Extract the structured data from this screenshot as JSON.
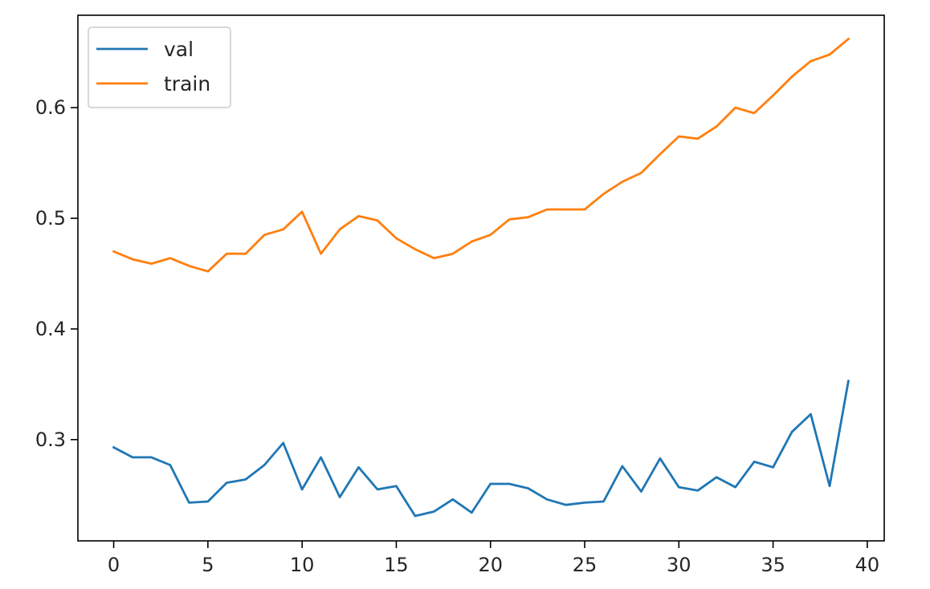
{
  "chart_data": {
    "type": "line",
    "title": "",
    "xlabel": "",
    "ylabel": "",
    "x": [
      0,
      1,
      2,
      3,
      4,
      5,
      6,
      7,
      8,
      9,
      10,
      11,
      12,
      13,
      14,
      15,
      16,
      17,
      18,
      19,
      20,
      21,
      22,
      23,
      24,
      25,
      26,
      27,
      28,
      29,
      30,
      31,
      32,
      33,
      34,
      35,
      36,
      37,
      38,
      39
    ],
    "xlim": [
      -1.9,
      40.9
    ],
    "ylim": [
      0.2085,
      0.6835
    ],
    "xticks": [
      0,
      5,
      10,
      15,
      20,
      25,
      30,
      35,
      40
    ],
    "xtick_labels": [
      "0",
      "5",
      "10",
      "15",
      "20",
      "25",
      "30",
      "35",
      "40"
    ],
    "yticks": [
      0.3,
      0.4,
      0.5,
      0.6
    ],
    "ytick_labels": [
      "0.3",
      "0.4",
      "0.5",
      "0.6"
    ],
    "grid": false,
    "legend_position": "upper-left",
    "series": [
      {
        "name": "val",
        "color": "#1f77b4",
        "values": [
          0.293,
          0.284,
          0.284,
          0.277,
          0.243,
          0.244,
          0.261,
          0.264,
          0.277,
          0.297,
          0.255,
          0.284,
          0.248,
          0.275,
          0.255,
          0.258,
          0.231,
          0.235,
          0.246,
          0.234,
          0.26,
          0.26,
          0.256,
          0.246,
          0.241,
          0.243,
          0.244,
          0.276,
          0.253,
          0.283,
          0.257,
          0.254,
          0.266,
          0.257,
          0.28,
          0.275,
          0.307,
          0.323,
          0.258,
          0.353
        ]
      },
      {
        "name": "train",
        "color": "#ff7f0e",
        "values": [
          0.47,
          0.463,
          0.459,
          0.464,
          0.457,
          0.452,
          0.468,
          0.468,
          0.485,
          0.49,
          0.506,
          0.468,
          0.49,
          0.502,
          0.498,
          0.482,
          0.472,
          0.464,
          0.468,
          0.479,
          0.485,
          0.499,
          0.501,
          0.508,
          0.508,
          0.508,
          0.522,
          0.533,
          0.541,
          0.558,
          0.574,
          0.572,
          0.583,
          0.6,
          0.595,
          0.611,
          0.628,
          0.642,
          0.648,
          0.662
        ]
      }
    ]
  }
}
